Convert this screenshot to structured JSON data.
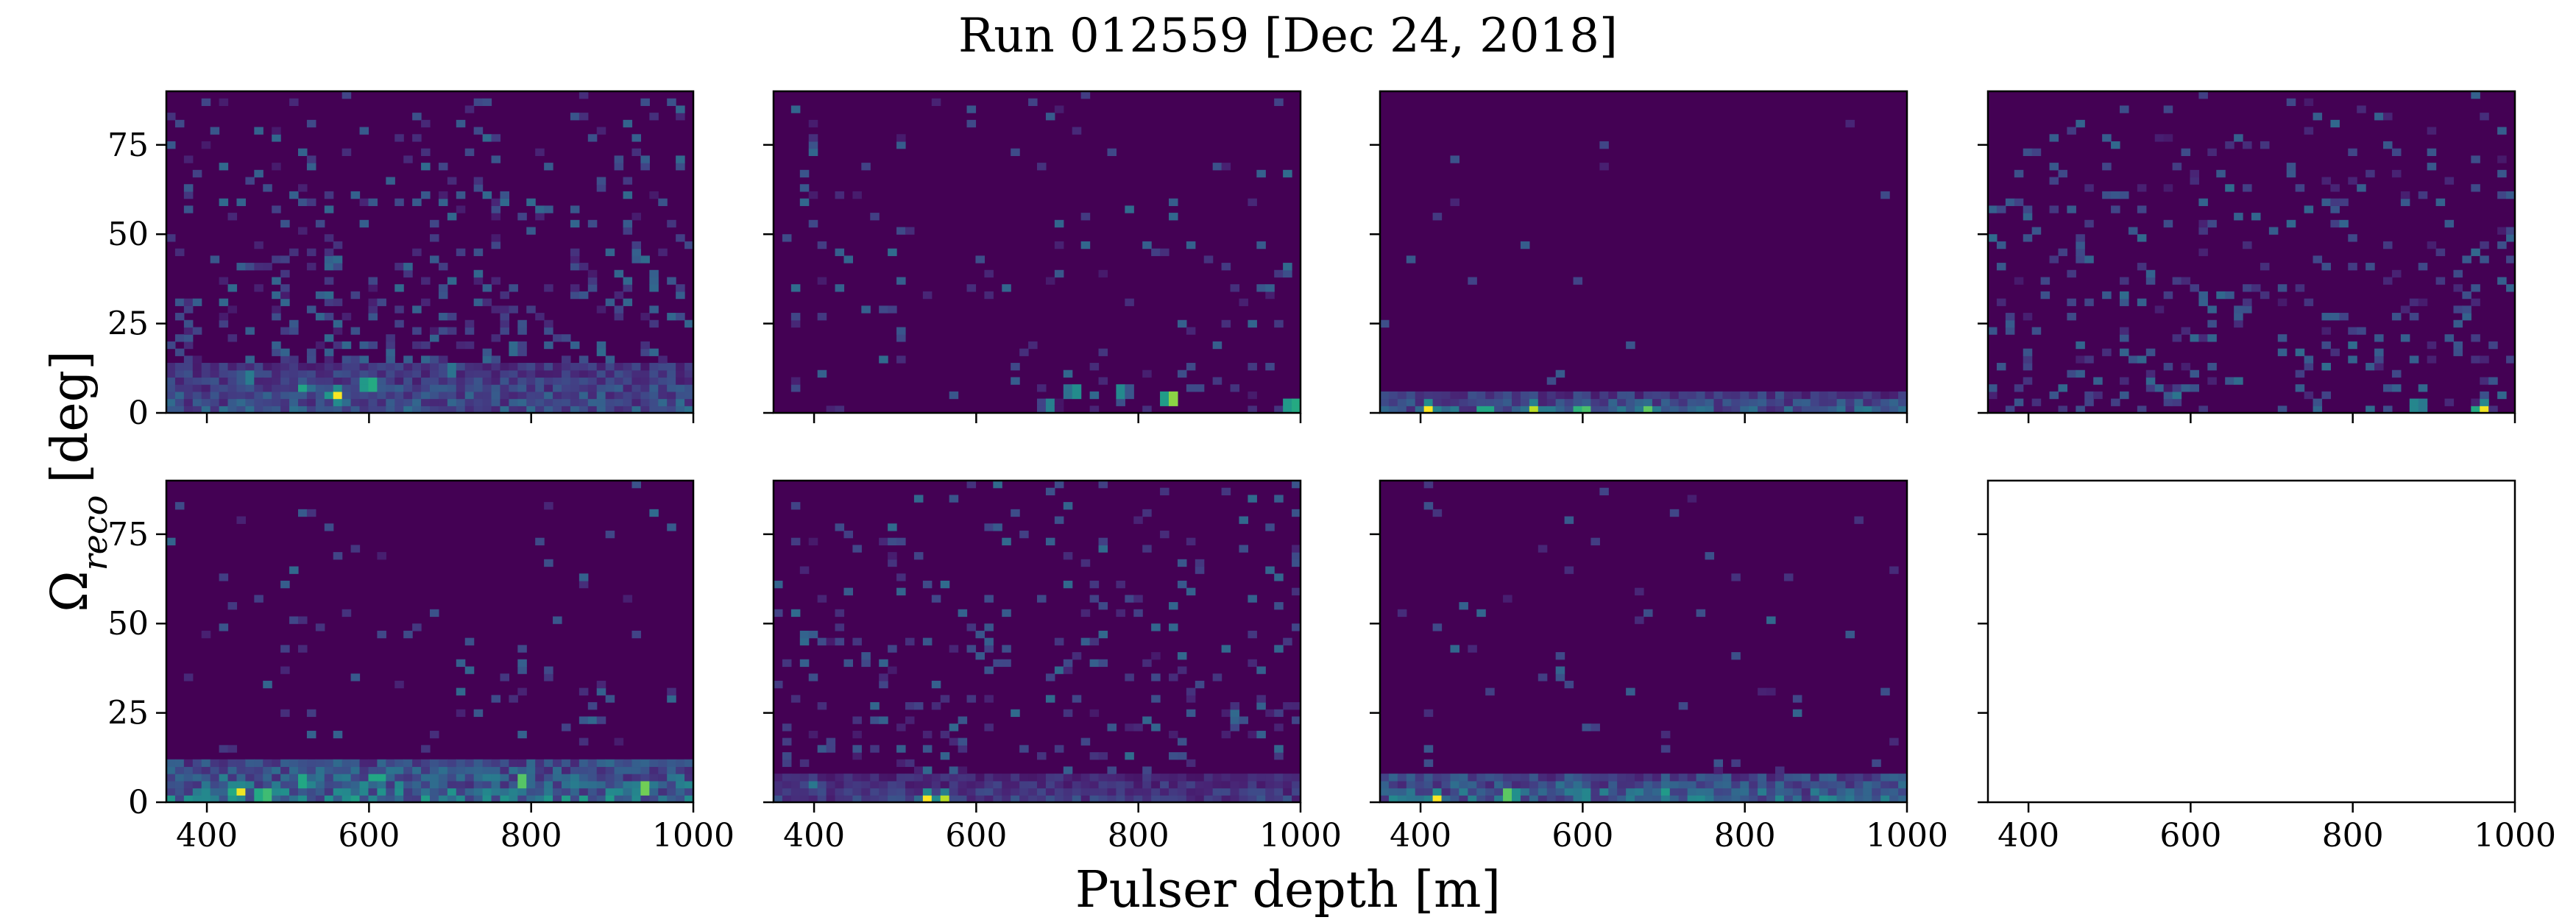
{
  "figure": {
    "title": "Run 012559 [Dec 24, 2018]",
    "xlabel": "Pulser depth [m]",
    "ylabel_symbol": "Ω",
    "ylabel_subscript": "reco",
    "ylabel_unit": "[deg]"
  },
  "colors": {
    "background": "#440154",
    "colormap": [
      "#440154",
      "#482475",
      "#414487",
      "#355f8d",
      "#2a788e",
      "#21918c",
      "#22a884",
      "#44bf70",
      "#7ad151",
      "#bddf26",
      "#fde725"
    ],
    "axes": "#000000"
  },
  "chart_data": [
    {
      "type": "heatmap",
      "panel": "row1-col1",
      "xlim": [
        350,
        1000
      ],
      "ylim": [
        0,
        90
      ],
      "xticks": [
        "400",
        "600",
        "800",
        "1000"
      ],
      "yticks": [
        "0",
        "25",
        "50",
        "75"
      ],
      "show_xticklabels": false,
      "show_yticklabels": true,
      "hot_spots": [
        {
          "x": 560,
          "y": 5,
          "intensity": 1.0
        },
        {
          "x": 600,
          "y": 8,
          "intensity": 0.8
        },
        {
          "x": 520,
          "y": 7,
          "intensity": 0.6
        },
        {
          "x": 450,
          "y": 10,
          "intensity": 0.5
        },
        {
          "x": 780,
          "y": 18,
          "intensity": 0.4
        },
        {
          "x": 700,
          "y": 12,
          "intensity": 0.45
        }
      ],
      "band": {
        "y_max": 14,
        "level": 0.3
      },
      "noise_density": 0.18
    },
    {
      "type": "heatmap",
      "panel": "row1-col2",
      "xlim": [
        350,
        1000
      ],
      "ylim": [
        0,
        90
      ],
      "xticks": [
        "400",
        "600",
        "800",
        "1000"
      ],
      "yticks": [
        "0",
        "25",
        "50",
        "75"
      ],
      "show_xticklabels": false,
      "show_yticklabels": false,
      "hot_spots": [
        {
          "x": 840,
          "y": 4,
          "intensity": 1.0
        },
        {
          "x": 990,
          "y": 2,
          "intensity": 0.8
        },
        {
          "x": 720,
          "y": 6,
          "intensity": 0.6
        },
        {
          "x": 780,
          "y": 6,
          "intensity": 0.55
        },
        {
          "x": 690,
          "y": 2,
          "intensity": 0.5
        }
      ],
      "band": {
        "y_max": 0,
        "level": 0
      },
      "noise_density": 0.06
    },
    {
      "type": "heatmap",
      "panel": "row1-col3",
      "xlim": [
        350,
        1000
      ],
      "ylim": [
        0,
        90
      ],
      "xticks": [
        "400",
        "600",
        "800",
        "1000"
      ],
      "yticks": [
        "0",
        "25",
        "50",
        "75"
      ],
      "show_xticklabels": false,
      "show_yticklabels": false,
      "hot_spots": [
        {
          "x": 410,
          "y": 1,
          "intensity": 1.0
        },
        {
          "x": 540,
          "y": 1,
          "intensity": 0.9
        },
        {
          "x": 600,
          "y": 1,
          "intensity": 0.8
        },
        {
          "x": 680,
          "y": 1,
          "intensity": 0.75
        },
        {
          "x": 480,
          "y": 1,
          "intensity": 0.7
        }
      ],
      "band": {
        "y_max": 5,
        "level": 0.35
      },
      "noise_density": 0.01
    },
    {
      "type": "heatmap",
      "panel": "row1-col4",
      "xlim": [
        350,
        1000
      ],
      "ylim": [
        0,
        90
      ],
      "xticks": [
        "400",
        "600",
        "800",
        "1000"
      ],
      "yticks": [
        "0",
        "25",
        "50",
        "75"
      ],
      "show_xticklabels": false,
      "show_yticklabels": false,
      "hot_spots": [
        {
          "x": 960,
          "y": 1,
          "intensity": 1.0
        },
        {
          "x": 880,
          "y": 2,
          "intensity": 0.6
        },
        {
          "x": 580,
          "y": 5,
          "intensity": 0.4
        }
      ],
      "band": {
        "y_max": 0,
        "level": 0
      },
      "noise_density": 0.14
    },
    {
      "type": "heatmap",
      "panel": "row2-col1",
      "xlim": [
        350,
        1000
      ],
      "ylim": [
        0,
        90
      ],
      "xticks": [
        "400",
        "600",
        "800",
        "1000"
      ],
      "yticks": [
        "0",
        "25",
        "50",
        "75"
      ],
      "show_xticklabels": true,
      "show_yticklabels": true,
      "hot_spots": [
        {
          "x": 440,
          "y": 3,
          "intensity": 1.0
        },
        {
          "x": 470,
          "y": 2,
          "intensity": 0.9
        },
        {
          "x": 790,
          "y": 6,
          "intensity": 0.85
        },
        {
          "x": 940,
          "y": 4,
          "intensity": 0.9
        },
        {
          "x": 610,
          "y": 7,
          "intensity": 0.7
        },
        {
          "x": 520,
          "y": 6,
          "intensity": 0.7
        }
      ],
      "band": {
        "y_max": 12,
        "level": 0.45
      },
      "noise_density": 0.04
    },
    {
      "type": "heatmap",
      "panel": "row2-col2",
      "xlim": [
        350,
        1000
      ],
      "ylim": [
        0,
        90
      ],
      "xticks": [
        "400",
        "600",
        "800",
        "1000"
      ],
      "yticks": [
        "0",
        "25",
        "50",
        "75"
      ],
      "show_xticklabels": true,
      "show_yticklabels": false,
      "hot_spots": [
        {
          "x": 540,
          "y": 1,
          "intensity": 1.0
        },
        {
          "x": 560,
          "y": 1,
          "intensity": 0.9
        },
        {
          "x": 400,
          "y": 5,
          "intensity": 0.4
        }
      ],
      "band": {
        "y_max": 8,
        "level": 0.22
      },
      "noise_density": 0.12
    },
    {
      "type": "heatmap",
      "panel": "row2-col3",
      "xlim": [
        350,
        1000
      ],
      "ylim": [
        0,
        90
      ],
      "xticks": [
        "400",
        "600",
        "800",
        "1000"
      ],
      "yticks": [
        "0",
        "25",
        "50",
        "75"
      ],
      "show_xticklabels": true,
      "show_yticklabels": false,
      "hot_spots": [
        {
          "x": 420,
          "y": 1,
          "intensity": 1.0
        },
        {
          "x": 510,
          "y": 2,
          "intensity": 0.9
        },
        {
          "x": 600,
          "y": 2,
          "intensity": 0.6
        },
        {
          "x": 700,
          "y": 3,
          "intensity": 0.55
        }
      ],
      "band": {
        "y_max": 8,
        "level": 0.4
      },
      "noise_density": 0.02
    },
    {
      "type": "empty",
      "panel": "row2-col4",
      "xlim": [
        350,
        1000
      ],
      "ylim": [
        0,
        90
      ],
      "xticks": [
        "400",
        "600",
        "800",
        "1000"
      ],
      "yticks": [
        "0",
        "25",
        "50",
        "75"
      ],
      "show_xticklabels": true,
      "show_yticklabels": false
    }
  ]
}
